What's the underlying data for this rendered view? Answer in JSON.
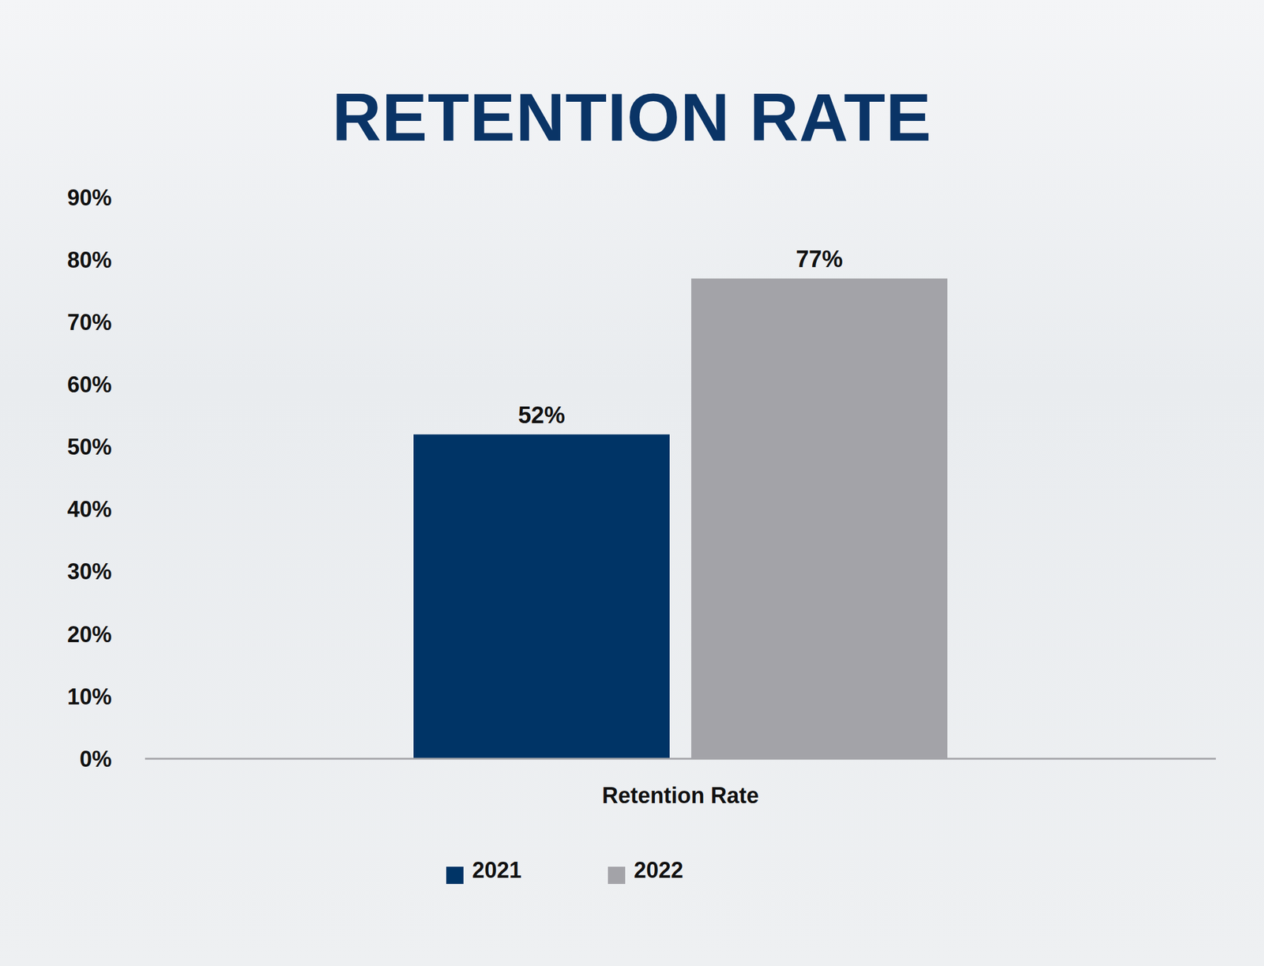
{
  "chart_data": {
    "type": "bar",
    "title": "RETENTION RATE",
    "categories": [
      "Retention Rate"
    ],
    "series": [
      {
        "name": "2021",
        "color": "#003466",
        "values": [
          52
        ],
        "value_labels": [
          "52%"
        ]
      },
      {
        "name": "2022",
        "color": "#a3a3a8",
        "values": [
          77
        ],
        "value_labels": [
          "77%"
        ]
      }
    ],
    "ylim": [
      0,
      90
    ],
    "yticks": [
      {
        "value": 0,
        "label": "0%"
      },
      {
        "value": 10,
        "label": "10%"
      },
      {
        "value": 20,
        "label": "20%"
      },
      {
        "value": 30,
        "label": "30%"
      },
      {
        "value": 40,
        "label": "40%"
      },
      {
        "value": 50,
        "label": "50%"
      },
      {
        "value": 60,
        "label": "60%"
      },
      {
        "value": 70,
        "label": "70%"
      },
      {
        "value": 80,
        "label": "80%"
      },
      {
        "value": 90,
        "label": "90%"
      }
    ],
    "grid": false,
    "legend": "bottom",
    "data_labels": true
  }
}
